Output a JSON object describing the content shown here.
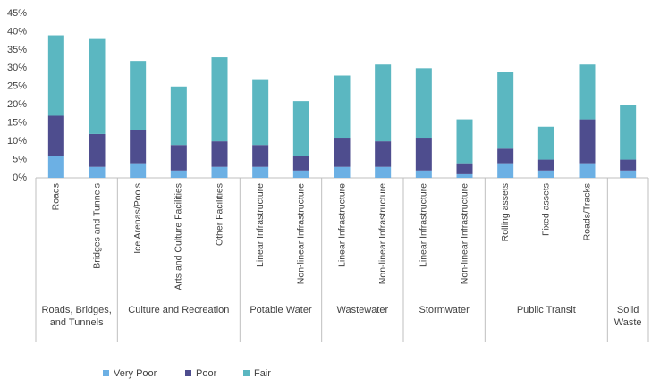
{
  "chart_data": {
    "type": "stacked_bar",
    "category_groups": [
      {
        "name": "Roads, Bridges, and Tunnels",
        "categories": [
          "Roads",
          "Bridges and Tunnels"
        ]
      },
      {
        "name": "Culture and Recreation",
        "categories": [
          "Ice Arenas/Pools",
          "Arts and Culture Facilities",
          "Other Facilities"
        ]
      },
      {
        "name": "Potable Water",
        "categories": [
          "Linear Infrastructure",
          "Non-linear Infrastructure"
        ]
      },
      {
        "name": "Wastewater",
        "categories": [
          "Linear Infrastructure",
          "Non-linear Infrastructure"
        ]
      },
      {
        "name": "Stormwater",
        "categories": [
          "Linear Infrastructure",
          "Non-linear Infrastructure"
        ]
      },
      {
        "name": "Public Transit",
        "categories": [
          "Rolling assets",
          "Fixed assets",
          "Roads/Tracks"
        ]
      },
      {
        "name": "Solid Waste",
        "categories": [
          null
        ]
      }
    ],
    "series": [
      {
        "name": "Very Poor",
        "color": "#6cb0e4",
        "values": [
          6,
          3,
          4,
          2,
          3,
          3,
          2,
          3,
          3,
          2,
          1,
          4,
          2,
          4,
          2
        ]
      },
      {
        "name": "Poor",
        "color": "#4e4d8e",
        "values": [
          11,
          9,
          9,
          7,
          7,
          6,
          4,
          8,
          7,
          9,
          3,
          4,
          3,
          12,
          3
        ]
      },
      {
        "name": "Fair",
        "color": "#5bb7c1",
        "values": [
          22,
          26,
          19,
          16,
          23,
          18,
          15,
          17,
          21,
          19,
          12,
          21,
          9,
          15,
          15
        ]
      }
    ],
    "ylim": [
      0,
      45
    ],
    "yticks": [
      {
        "value": 0,
        "label": "0%"
      },
      {
        "value": 5,
        "label": "5%"
      },
      {
        "value": 10,
        "label": "10%"
      },
      {
        "value": 15,
        "label": "15%"
      },
      {
        "value": 20,
        "label": "20%"
      },
      {
        "value": 25,
        "label": "25%"
      },
      {
        "value": 30,
        "label": "30%"
      },
      {
        "value": 35,
        "label": "35%"
      },
      {
        "value": 40,
        "label": "40%"
      },
      {
        "value": 45,
        "label": "45%"
      }
    ],
    "grid": false,
    "legend": "bottom"
  }
}
